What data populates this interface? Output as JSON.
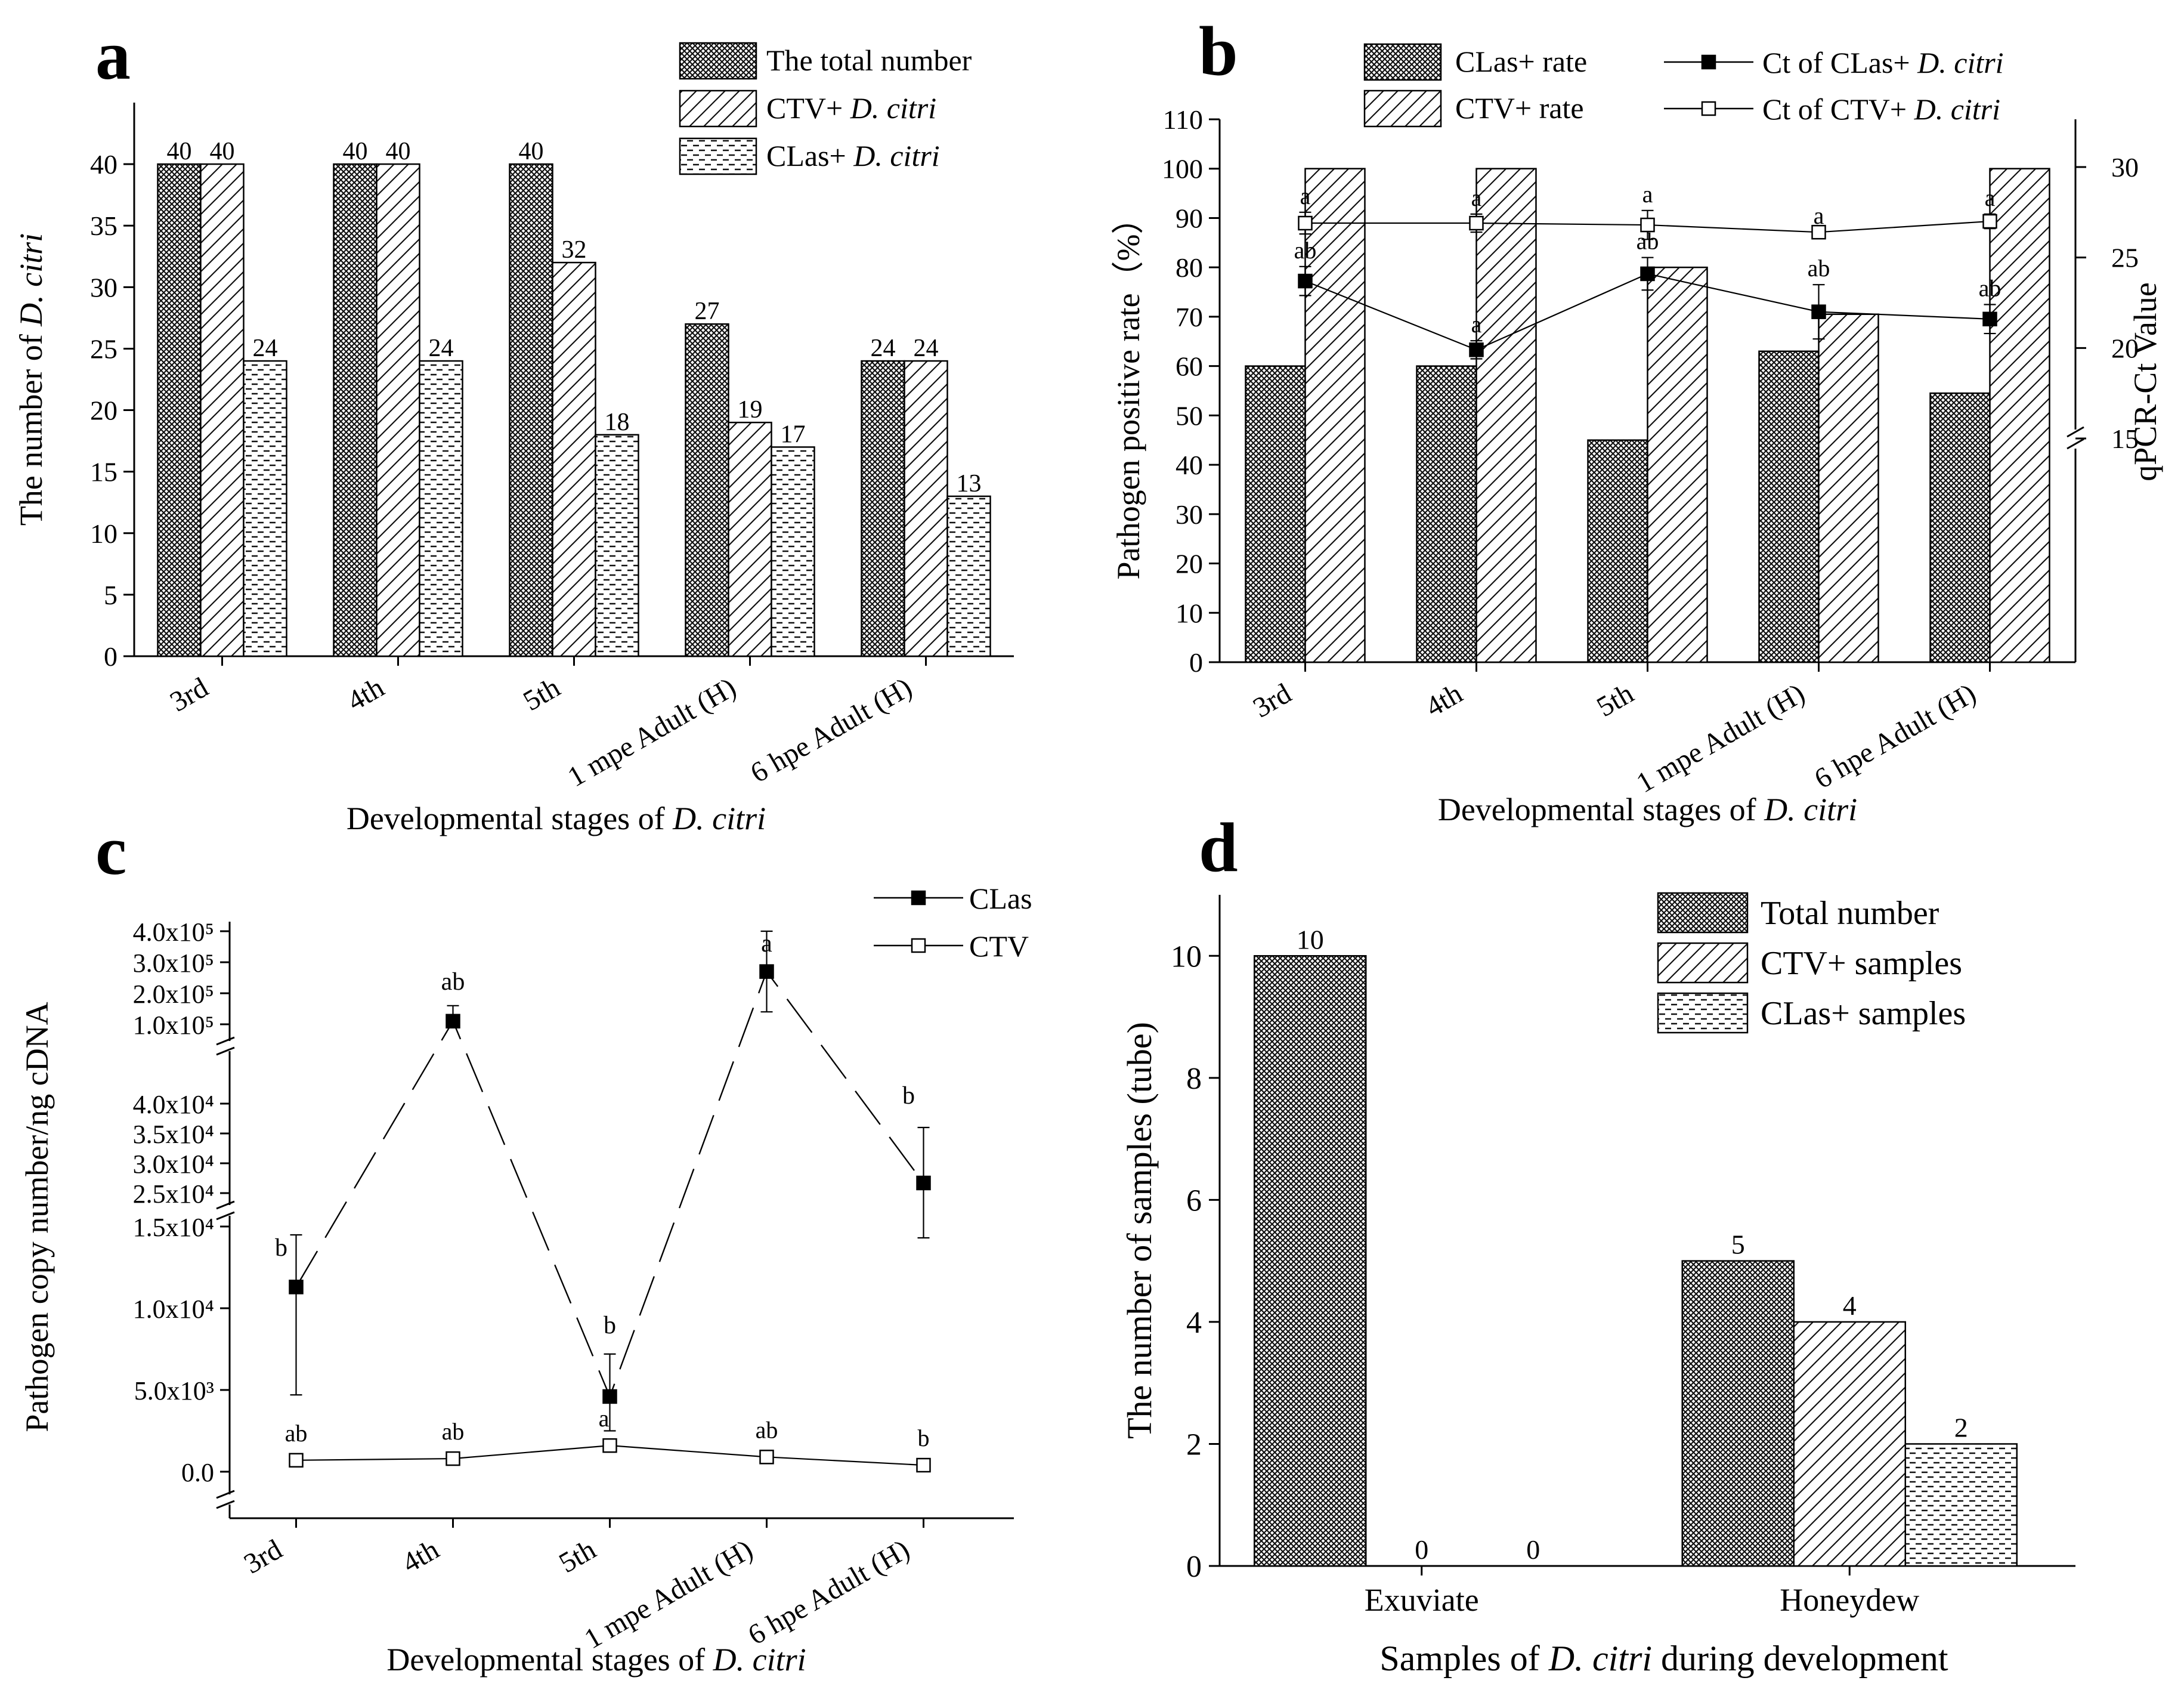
{
  "chart_data": [
    {
      "panel": "a",
      "type": "bar",
      "categories": [
        "3rd",
        "4th",
        "5th",
        "1 mpe Adult (H)",
        "6 hpe Adult (H)"
      ],
      "series": [
        {
          "name": "The total number",
          "italic": "",
          "pattern": "crosshatch",
          "values": [
            40,
            40,
            40,
            27,
            24
          ]
        },
        {
          "name": "CTV+ ",
          "italic": "D. citri",
          "pattern": "diagonal",
          "values": [
            40,
            40,
            32,
            19,
            24
          ]
        },
        {
          "name": "CLas+ ",
          "italic": "D. citri",
          "pattern": "dash",
          "values": [
            24,
            24,
            18,
            17,
            13
          ]
        }
      ],
      "ylabel": "The number of ",
      "ylabel_italic": "D. citri",
      "xlabel": "Developmental stages of ",
      "xlabel_italic": "D. citri",
      "ylim": [
        0,
        45
      ],
      "yticks": [
        0,
        5,
        10,
        15,
        20,
        25,
        30,
        35,
        40
      ]
    },
    {
      "panel": "b",
      "type": "bar",
      "categories": [
        "3rd",
        "4th",
        "5th",
        "1 mpe Adult (H)",
        "6 hpe Adult (H)"
      ],
      "series": [
        {
          "name": "CLas+ rate",
          "pattern": "crosshatch",
          "values": [
            60,
            60,
            45,
            63,
            54.5
          ]
        },
        {
          "name": "CTV+ rate",
          "pattern": "diagonal",
          "values": [
            100,
            100,
            80,
            70.5,
            100
          ]
        }
      ],
      "line_series": [
        {
          "name": "Ct of CLas+ ",
          "italic": "D. citri",
          "marker": "filled",
          "values": [
            23.7,
            19.9,
            24.1,
            22,
            21.6
          ],
          "err": [
            0.8,
            0.5,
            0.9,
            1.5,
            0.8
          ],
          "labels": [
            "ab",
            "a",
            "ab",
            "ab",
            "ab"
          ]
        },
        {
          "name": "Ct of CTV+ ",
          "italic": "D. citri",
          "marker": "open",
          "values": [
            26.9,
            26.9,
            26.8,
            26.4,
            27
          ],
          "err": [
            0.6,
            0.5,
            0.8,
            0,
            0.4
          ],
          "labels": [
            "a",
            "a",
            "a",
            "a",
            "a"
          ]
        }
      ],
      "ylabel": "Pathogen positive rate（%）",
      "ylabel_right": "qPCR-Ct Value",
      "xlabel": "Developmental stages of ",
      "xlabel_italic": "D. citri",
      "ylim": [
        0,
        110
      ],
      "yticks": [
        0,
        10,
        20,
        30,
        40,
        50,
        60,
        70,
        80,
        90,
        100,
        110
      ],
      "y2ticks": [
        15,
        20,
        25,
        30
      ]
    },
    {
      "panel": "c",
      "type": "line",
      "categories": [
        "3rd",
        "4th",
        "5th",
        "1 mpe Adult (H)",
        "6 hpe Adult (H)"
      ],
      "series": [
        {
          "name": "CLas",
          "marker": "filled",
          "values": [
            11300,
            110000,
            4600,
            270000,
            26700
          ],
          "labels": [
            "b",
            "ab",
            "b",
            "a",
            "b"
          ]
        },
        {
          "name": "CTV",
          "marker": "open",
          "values": [
            700,
            800,
            1600,
            900,
            400
          ],
          "labels": [
            "ab",
            "ab",
            "a",
            "ab",
            "b"
          ]
        }
      ],
      "ylabel": "Pathogen copy number/ng cDNA",
      "xlabel": "Developmental stages of ",
      "xlabel_italic": "D. citri",
      "yticks_lower": [
        "0.0",
        "5.0x10³",
        "1.0x10⁴",
        "1.5x10⁴"
      ],
      "yticks_mid": [
        "2.5x10⁴",
        "3.0x10⁴",
        "3.5x10⁴",
        "4.0x10⁴"
      ],
      "yticks_upper": [
        "1.0x10⁵",
        "2.0x10⁵",
        "3.0x10⁵",
        "4.0x10⁵"
      ]
    },
    {
      "panel": "d",
      "type": "bar",
      "categories": [
        "Exuviate",
        "Honeydew"
      ],
      "series": [
        {
          "name": "Total number",
          "pattern": "crosshatch",
          "values": [
            10,
            5
          ]
        },
        {
          "name": "CTV+ samples",
          "pattern": "diagonal",
          "values": [
            0,
            4
          ]
        },
        {
          "name": "CLas+ samples",
          "pattern": "dash",
          "values": [
            0,
            2
          ]
        }
      ],
      "ylabel": "The number of samples (tube)",
      "xlabel": "Samples of ",
      "xlabel_italic": "D. citri",
      "xlabel_tail": " during development",
      "ylim": [
        0,
        11
      ],
      "yticks": [
        0,
        2,
        4,
        6,
        8,
        10
      ]
    }
  ],
  "panels": {
    "a": "a",
    "b": "b",
    "c": "c",
    "d": "d"
  }
}
